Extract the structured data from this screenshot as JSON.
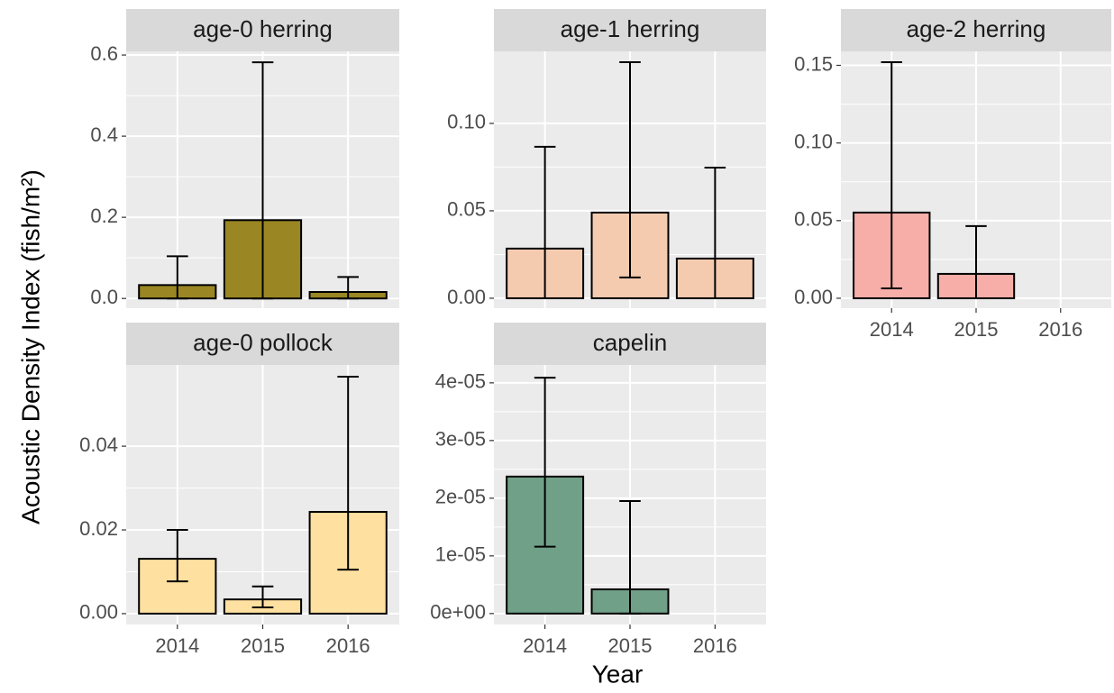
{
  "axis_labels": {
    "x": "Year",
    "y": "Acoustic Density Index (fish/m²)"
  },
  "chart_data": [
    {
      "type": "bar",
      "title": "age-0 herring",
      "color": "#9a8622",
      "categories": [
        "2014",
        "2015",
        "2016"
      ],
      "values": [
        0.033,
        0.193,
        0.016
      ],
      "lower": [
        0,
        0,
        0
      ],
      "upper": [
        0.104,
        0.582,
        0.053
      ],
      "ylim": [
        -0.024,
        0.609
      ],
      "yticks": [
        {
          "value": 0,
          "label": "0.0"
        },
        0.2,
        0.4,
        0.6
      ],
      "grid": true
    },
    {
      "type": "bar",
      "title": "age-1 herring",
      "color": "#f5cbb0",
      "categories": [
        "2014",
        "2015",
        "2016"
      ],
      "values": [
        0.0284,
        0.049,
        0.0227
      ],
      "lower": [
        0,
        0.0119,
        0
      ],
      "upper": [
        0.0866,
        0.135,
        0.0747
      ],
      "ylim": [
        -0.0057,
        0.1412
      ],
      "yticks": [
        {
          "value": 0,
          "label": "0.00"
        },
        0.05,
        {
          "value": 0.1,
          "label": "0.10"
        }
      ],
      "grid": true
    },
    {
      "type": "bar",
      "title": "age-2 herring",
      "color": "#f8aea8",
      "categories": [
        "2014",
        "2015",
        "2016"
      ],
      "values": [
        0.0552,
        0.0157,
        null
      ],
      "lower": [
        0.0064,
        0,
        null
      ],
      "upper": [
        0.152,
        0.0465,
        null
      ],
      "ylim": [
        -0.0064,
        0.159
      ],
      "yticks": [
        {
          "value": 0,
          "label": "0.00"
        },
        0.05,
        {
          "value": 0.1,
          "label": "0.10"
        },
        0.15
      ],
      "grid": true
    },
    {
      "type": "bar",
      "title": "age-0 pollock",
      "color": "#fee0a0",
      "categories": [
        "2014",
        "2015",
        "2016"
      ],
      "values": [
        0.0131,
        0.0034,
        0.0243
      ],
      "lower": [
        0.0077,
        0.0015,
        0.0105
      ],
      "upper": [
        0.02,
        0.0065,
        0.0566
      ],
      "ylim": [
        -0.0026,
        0.0594
      ],
      "yticks": [
        {
          "value": 0,
          "label": "0.00"
        },
        0.02,
        0.04
      ],
      "grid": true
    },
    {
      "type": "bar",
      "title": "capelin",
      "color": "#70a088",
      "categories": [
        "2014",
        "2015",
        "2016"
      ],
      "values": [
        2.375e-05,
        4.2e-06,
        null
      ],
      "lower": [
        1.16e-05,
        0,
        null
      ],
      "upper": [
        4.09e-05,
        1.95e-05,
        null
      ],
      "ylim": [
        -1.9e-06,
        4.31e-05
      ],
      "yticks": [
        {
          "value": 0,
          "label": "0e+00"
        },
        {
          "value": 1e-05,
          "label": "1e-05"
        },
        {
          "value": 2e-05,
          "label": "2e-05"
        },
        {
          "value": 3e-05,
          "label": "3e-05"
        },
        {
          "value": 4e-05,
          "label": "4e-05"
        }
      ],
      "grid": true
    }
  ]
}
